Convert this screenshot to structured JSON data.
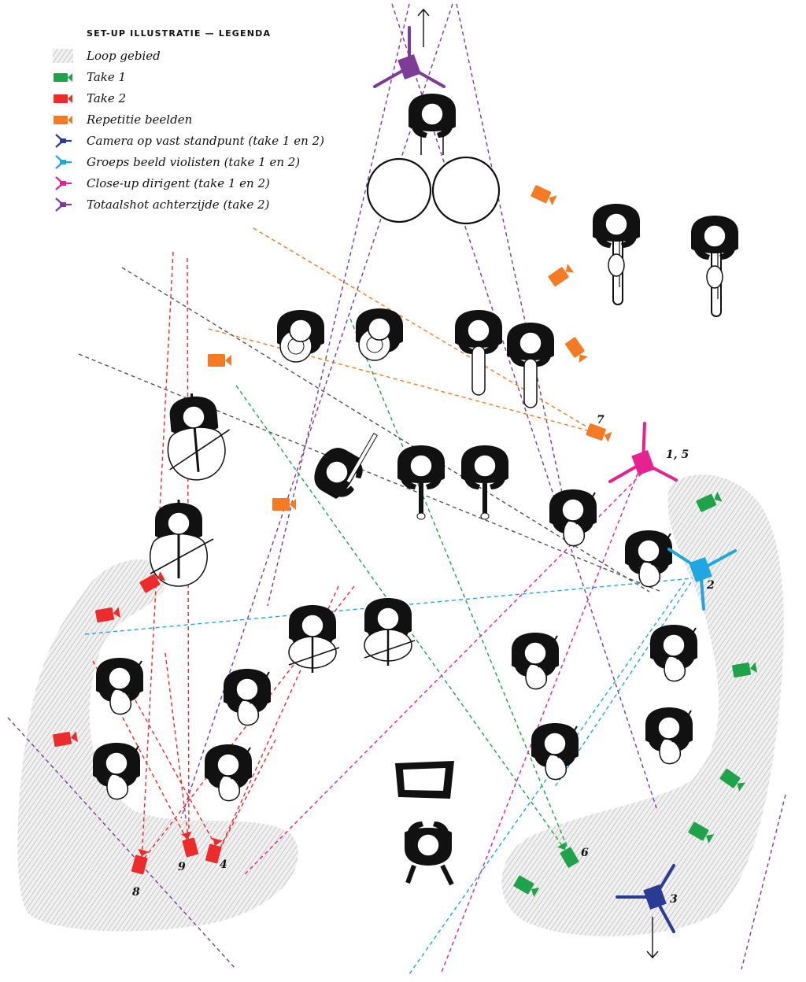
{
  "legend": {
    "title": "SET-UP ILLUSTRATIE — LEGENDA",
    "items": [
      {
        "label": "Loop gebied",
        "kind": "hatch",
        "color": "#c8c8c8",
        "icon": "hatch-swatch"
      },
      {
        "label": "Take 1",
        "kind": "cam",
        "color": "#1fa34a",
        "icon": "camera-icon"
      },
      {
        "label": "Take 2",
        "kind": "cam",
        "color": "#ee2b2b",
        "icon": "camera-icon"
      },
      {
        "label": "Repetitie beelden",
        "kind": "cam",
        "color": "#f47a23",
        "icon": "camera-icon"
      },
      {
        "label": "Camera op vast standpunt (take 1 en 2)",
        "kind": "tripod",
        "color": "#2b3a93",
        "icon": "tripod-icon"
      },
      {
        "label": "Groeps beeld violisten (take 1 en 2)",
        "kind": "tripod",
        "color": "#1ea7e1",
        "icon": "tripod-icon"
      },
      {
        "label": "Close-up dirigent (take 1 en 2)",
        "kind": "tripod",
        "color": "#e62290",
        "icon": "tripod-icon"
      },
      {
        "label": "Totaalshot achterzijde (take 2)",
        "kind": "tripod",
        "color": "#7d3c98",
        "icon": "tripod-icon"
      }
    ]
  },
  "camera_numbers": [
    "1, 5",
    "2",
    "3",
    "4",
    "6",
    "7",
    "8",
    "9"
  ],
  "colors": {
    "take1": "#1fa34a",
    "take2": "#ee2b2b",
    "rehearsal": "#f47a23",
    "fixed": "#2b3a93",
    "violins": "#1ea7e1",
    "conductor": "#e62290",
    "rear": "#7d3c98",
    "grey": "#555555",
    "musician": "#111111"
  }
}
